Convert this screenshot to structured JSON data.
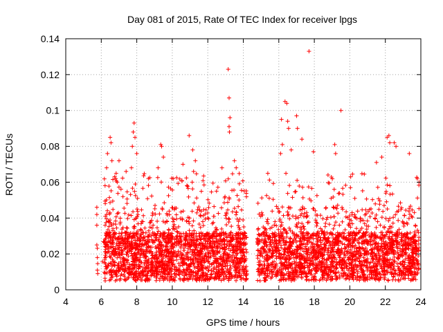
{
  "chart_data": {
    "type": "scatter",
    "title": "Day 081 of 2015, Rate Of TEC Index for receiver lpgs",
    "xlabel": "GPS time / hours",
    "ylabel": "ROTI / TECUs",
    "xlim": [
      4,
      24
    ],
    "ylim": [
      0,
      0.14
    ],
    "x_ticks": [
      4,
      6,
      8,
      10,
      12,
      14,
      16,
      18,
      20,
      22,
      24
    ],
    "y_ticks": [
      0,
      0.02,
      0.04,
      0.06,
      0.08,
      0.1,
      0.12,
      0.14
    ],
    "x_tick_labels": [
      "4",
      "6",
      "8",
      "10",
      "12",
      "14",
      "16",
      "18",
      "20",
      "22",
      "24"
    ],
    "y_tick_labels": [
      "0",
      "0.02",
      "0.04",
      "0.06",
      "0.08",
      "0.1",
      "0.12",
      "0.14"
    ],
    "grid": true,
    "marker": "+",
    "color": "#ff0000",
    "data_gaps_hours": [
      [
        4,
        5.7
      ],
      [
        14.2,
        14.8
      ]
    ],
    "series": [
      {
        "name": "ROTI",
        "points": [
          [
            5.75,
            0.046
          ],
          [
            5.75,
            0.042
          ],
          [
            5.75,
            0.036
          ],
          [
            5.75,
            0.025
          ],
          [
            5.78,
            0.018
          ],
          [
            5.78,
            0.011
          ],
          [
            5.8,
            0.009
          ],
          [
            6.3,
            0.068
          ],
          [
            6.35,
            0.076
          ],
          [
            6.5,
            0.085
          ],
          [
            6.55,
            0.082
          ],
          [
            6.6,
            0.072
          ],
          [
            6.9,
            0.06
          ],
          [
            7.0,
            0.072
          ],
          [
            7.4,
            0.066
          ],
          [
            7.7,
            0.068
          ],
          [
            7.85,
            0.093
          ],
          [
            7.8,
            0.088
          ],
          [
            7.9,
            0.085
          ],
          [
            7.75,
            0.08
          ],
          [
            8.0,
            0.076
          ],
          [
            9.35,
            0.081
          ],
          [
            9.4,
            0.08
          ],
          [
            9.2,
            0.068
          ],
          [
            9.5,
            0.074
          ],
          [
            10.05,
            0.062
          ],
          [
            10.6,
            0.07
          ],
          [
            10.95,
            0.086
          ],
          [
            11.15,
            0.078
          ],
          [
            11.3,
            0.072
          ],
          [
            11.2,
            0.066
          ],
          [
            12.8,
            0.068
          ],
          [
            13.15,
            0.123
          ],
          [
            13.2,
            0.107
          ],
          [
            13.25,
            0.096
          ],
          [
            13.2,
            0.091
          ],
          [
            13.22,
            0.088
          ],
          [
            13.5,
            0.072
          ],
          [
            13.6,
            0.068
          ],
          [
            16.15,
            0.095
          ],
          [
            16.35,
            0.105
          ],
          [
            16.45,
            0.104
          ],
          [
            16.5,
            0.094
          ],
          [
            16.55,
            0.09
          ],
          [
            16.2,
            0.081
          ],
          [
            16.1,
            0.076
          ],
          [
            16.7,
            0.078
          ],
          [
            17.0,
            0.097
          ],
          [
            17.05,
            0.09
          ],
          [
            17.3,
            0.084
          ],
          [
            17.7,
            0.133
          ],
          [
            17.95,
            0.077
          ],
          [
            19.15,
            0.081
          ],
          [
            19.2,
            0.076
          ],
          [
            19.5,
            0.1
          ],
          [
            20.05,
            0.063
          ],
          [
            21.5,
            0.071
          ],
          [
            21.8,
            0.074
          ],
          [
            22.1,
            0.085
          ],
          [
            22.2,
            0.086
          ],
          [
            22.25,
            0.082
          ],
          [
            22.5,
            0.082
          ],
          [
            22.6,
            0.08
          ],
          [
            23.35,
            0.076
          ],
          [
            23.8,
            0.062
          ],
          [
            23.9,
            0.06
          ]
        ]
      }
    ]
  }
}
